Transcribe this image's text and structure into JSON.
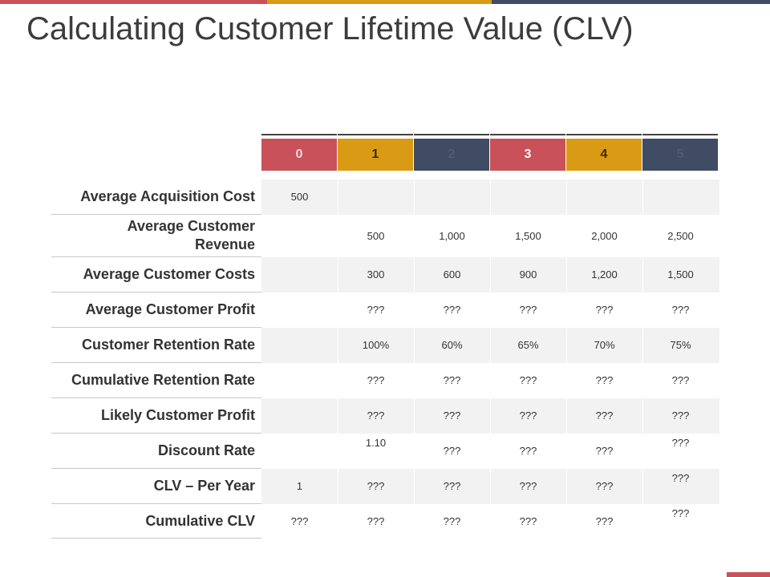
{
  "title": "Calculating Customer Lifetime Value (CLV)",
  "colors": {
    "red": "#c9515a",
    "gold": "#d99b14",
    "navy": "#3f4c63",
    "zebra": "#f2f2f2"
  },
  "columns": [
    {
      "label": "0",
      "color": "#c9515a",
      "text_color": "#f1d6d8"
    },
    {
      "label": "1",
      "color": "#d99b14",
      "text_color": "#3a2a00"
    },
    {
      "label": "2",
      "color": "#3f4c63",
      "text_color": "#4e5b73"
    },
    {
      "label": "3",
      "color": "#c9515a",
      "text_color": "#ffffff"
    },
    {
      "label": "4",
      "color": "#d99b14",
      "text_color": "#3a2a00"
    },
    {
      "label": "5",
      "color": "#3f4c63",
      "text_color": "#4e5b73"
    }
  ],
  "rows": [
    {
      "label": "Average Acquisition Cost",
      "values": [
        "500",
        "",
        "",
        "",
        "",
        ""
      ]
    },
    {
      "label": "Average Customer Revenue",
      "values": [
        "",
        "500",
        "1,000",
        "1,500",
        "2,000",
        "2,500"
      ]
    },
    {
      "label": "Average Customer Costs",
      "values": [
        "",
        "300",
        "600",
        "900",
        "1,200",
        "1,500"
      ]
    },
    {
      "label": "Average Customer Profit",
      "values": [
        "",
        "???",
        "???",
        "???",
        "???",
        "???"
      ]
    },
    {
      "label": "Customer Retention Rate",
      "values": [
        "",
        "100%",
        "60%",
        "65%",
        "70%",
        "75%"
      ]
    },
    {
      "label": "Cumulative Retention Rate",
      "values": [
        "",
        "???",
        "???",
        "???",
        "???",
        "???"
      ]
    },
    {
      "label": "Likely Customer Profit",
      "values": [
        "",
        "???",
        "???",
        "???",
        "???",
        "???"
      ]
    },
    {
      "label": "Discount Rate",
      "values": [
        "",
        "1.10",
        "???",
        "???",
        "???",
        "???"
      ]
    },
    {
      "label": "CLV – Per Year",
      "values": [
        "1",
        "???",
        "???",
        "???",
        "???",
        "???"
      ]
    },
    {
      "label": "Cumulative CLV",
      "values": [
        "???",
        "???",
        "???",
        "???",
        "???",
        "???"
      ]
    }
  ]
}
